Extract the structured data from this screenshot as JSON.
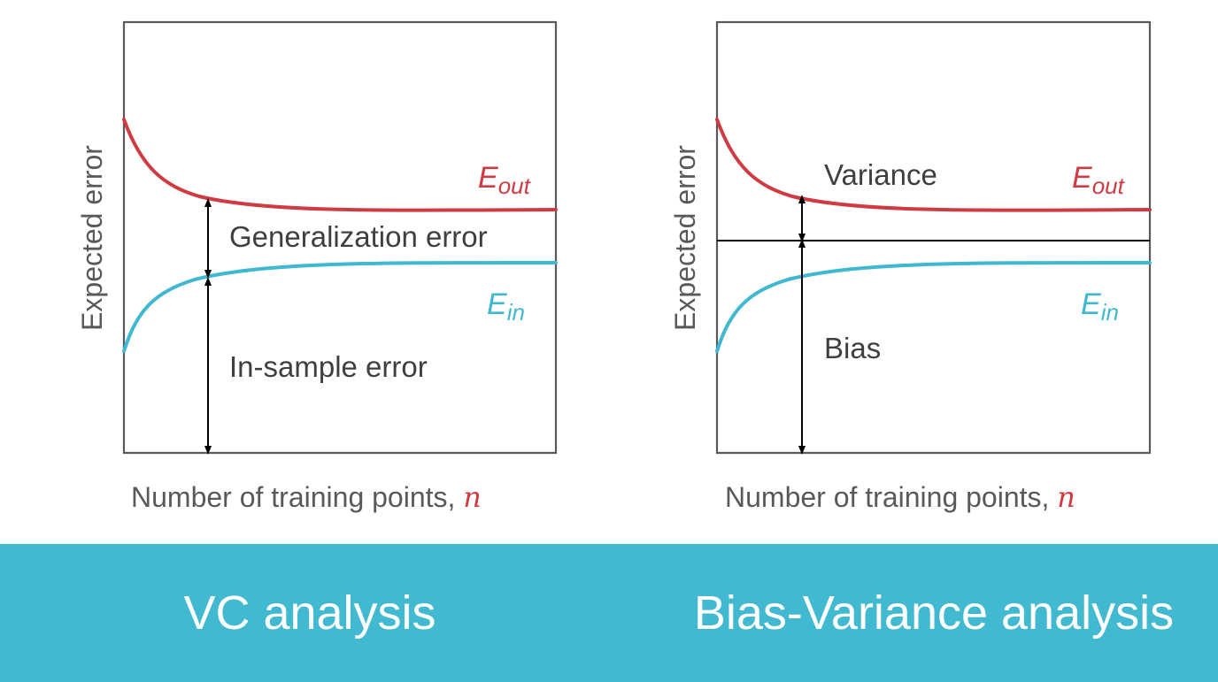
{
  "colors": {
    "e_out": "#cf3a43",
    "e_in": "#3fb8d0",
    "footer_bg": "#40b9d1",
    "footer_text": "#ffffff"
  },
  "panels": [
    {
      "y_axis_label": "Expected error",
      "x_axis_label": "Number of training points, ",
      "x_axis_variable": "n",
      "e_out_label": {
        "main": "E",
        "sub": "out"
      },
      "e_in_label": {
        "main": "E",
        "sub": "in"
      },
      "upper_annotation": "Generalization error",
      "lower_annotation": "In-sample error"
    },
    {
      "y_axis_label": "Expected error",
      "x_axis_label": "Number of training points, ",
      "x_axis_variable": "n",
      "e_out_label": {
        "main": "E",
        "sub": "out"
      },
      "e_in_label": {
        "main": "E",
        "sub": "in"
      },
      "upper_annotation": "Variance",
      "lower_annotation": "Bias"
    }
  ],
  "footer": {
    "left_title": "VC analysis",
    "right_title": "Bias-Variance analysis"
  }
}
